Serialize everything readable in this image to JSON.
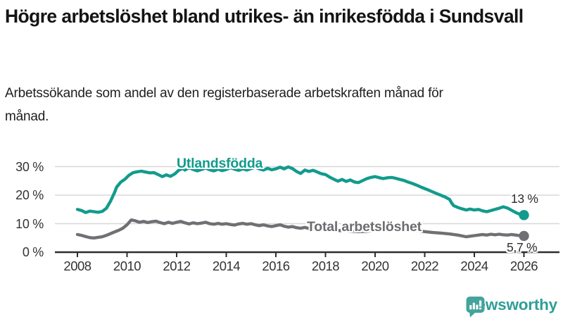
{
  "header": {
    "title": "Högre arbetslöshet bland utrikes- än inrikesfödda i Sundsvall",
    "subtitle": "Arbetssökande som andel av den registerbaserade arbetskraften månad för månad."
  },
  "chart_data": {
    "type": "line",
    "x_axis": {
      "tick_labels": [
        "2008",
        "2010",
        "2012",
        "2014",
        "2016",
        "2018",
        "2020",
        "2022",
        "2024",
        "2026"
      ],
      "ticks": [
        2008,
        2010,
        2012,
        2014,
        2016,
        2018,
        2020,
        2022,
        2024,
        2026
      ],
      "range": [
        2008,
        2026
      ]
    },
    "y_axis": {
      "tick_labels": [
        "0 %",
        "10 %",
        "20 %",
        "30 %"
      ],
      "ticks": [
        0,
        10,
        20,
        30
      ],
      "unit": "%",
      "range": [
        0,
        32
      ]
    },
    "grid": true,
    "colors": {
      "grid": "#d8d8d8",
      "axis": "#2e2e2e",
      "tick_text": "#333333"
    },
    "series": [
      {
        "name": "Utlandsfödda",
        "color": "#129b8d",
        "end_label": "13 %",
        "end_value": 13.0,
        "points": [
          [
            2008.0,
            15.0
          ],
          [
            2008.17,
            14.6
          ],
          [
            2008.33,
            13.9
          ],
          [
            2008.5,
            14.4
          ],
          [
            2008.67,
            14.2
          ],
          [
            2008.83,
            14.0
          ],
          [
            2009.0,
            14.3
          ],
          [
            2009.17,
            15.4
          ],
          [
            2009.33,
            17.8
          ],
          [
            2009.5,
            21.0
          ],
          [
            2009.58,
            22.8
          ],
          [
            2009.75,
            24.6
          ],
          [
            2009.92,
            25.6
          ],
          [
            2010.08,
            27.0
          ],
          [
            2010.25,
            27.9
          ],
          [
            2010.42,
            28.2
          ],
          [
            2010.58,
            28.4
          ],
          [
            2010.75,
            28.1
          ],
          [
            2010.92,
            27.8
          ],
          [
            2011.08,
            27.9
          ],
          [
            2011.25,
            27.2
          ],
          [
            2011.42,
            26.5
          ],
          [
            2011.58,
            27.1
          ],
          [
            2011.75,
            26.6
          ],
          [
            2011.92,
            27.4
          ],
          [
            2012.08,
            28.7
          ],
          [
            2012.25,
            29.4
          ],
          [
            2012.33,
            28.8
          ],
          [
            2012.5,
            29.6
          ],
          [
            2012.67,
            29.0
          ],
          [
            2012.83,
            28.5
          ],
          [
            2013.0,
            29.0
          ],
          [
            2013.17,
            29.5
          ],
          [
            2013.33,
            28.9
          ],
          [
            2013.5,
            28.5
          ],
          [
            2013.67,
            29.1
          ],
          [
            2013.83,
            28.6
          ],
          [
            2014.0,
            29.0
          ],
          [
            2014.17,
            29.6
          ],
          [
            2014.33,
            29.1
          ],
          [
            2014.5,
            28.7
          ],
          [
            2014.67,
            29.2
          ],
          [
            2014.83,
            28.8
          ],
          [
            2015.0,
            29.3
          ],
          [
            2015.17,
            29.8
          ],
          [
            2015.33,
            29.2
          ],
          [
            2015.5,
            28.8
          ],
          [
            2015.67,
            29.4
          ],
          [
            2015.83,
            28.9
          ],
          [
            2016.0,
            29.2
          ],
          [
            2016.17,
            29.8
          ],
          [
            2016.33,
            29.2
          ],
          [
            2016.5,
            29.9
          ],
          [
            2016.67,
            29.3
          ],
          [
            2016.83,
            28.3
          ],
          [
            2017.0,
            27.6
          ],
          [
            2017.17,
            28.8
          ],
          [
            2017.33,
            28.3
          ],
          [
            2017.5,
            28.7
          ],
          [
            2017.67,
            28.1
          ],
          [
            2017.83,
            27.5
          ],
          [
            2018.0,
            27.2
          ],
          [
            2018.17,
            26.3
          ],
          [
            2018.33,
            25.6
          ],
          [
            2018.5,
            24.9
          ],
          [
            2018.67,
            25.5
          ],
          [
            2018.83,
            24.8
          ],
          [
            2019.0,
            25.3
          ],
          [
            2019.17,
            24.6
          ],
          [
            2019.33,
            24.4
          ],
          [
            2019.5,
            25.1
          ],
          [
            2019.67,
            25.8
          ],
          [
            2019.83,
            26.2
          ],
          [
            2020.0,
            26.5
          ],
          [
            2020.17,
            26.1
          ],
          [
            2020.33,
            25.8
          ],
          [
            2020.5,
            26.1
          ],
          [
            2020.67,
            26.2
          ],
          [
            2020.83,
            25.9
          ],
          [
            2021.0,
            25.5
          ],
          [
            2021.17,
            25.1
          ],
          [
            2021.33,
            24.6
          ],
          [
            2021.5,
            24.1
          ],
          [
            2021.67,
            23.5
          ],
          [
            2021.83,
            22.9
          ],
          [
            2022.0,
            22.3
          ],
          [
            2022.17,
            21.7
          ],
          [
            2022.33,
            21.1
          ],
          [
            2022.5,
            20.5
          ],
          [
            2022.67,
            19.9
          ],
          [
            2022.83,
            19.3
          ],
          [
            2023.0,
            18.5
          ],
          [
            2023.08,
            17.3
          ],
          [
            2023.17,
            16.3
          ],
          [
            2023.33,
            15.7
          ],
          [
            2023.5,
            15.2
          ],
          [
            2023.67,
            14.8
          ],
          [
            2023.83,
            15.1
          ],
          [
            2024.0,
            14.8
          ],
          [
            2024.17,
            15.0
          ],
          [
            2024.33,
            14.5
          ],
          [
            2024.5,
            14.2
          ],
          [
            2024.67,
            14.6
          ],
          [
            2024.83,
            15.0
          ],
          [
            2025.0,
            15.4
          ],
          [
            2025.17,
            15.9
          ],
          [
            2025.33,
            15.5
          ],
          [
            2025.5,
            14.7
          ],
          [
            2025.67,
            13.9
          ],
          [
            2025.83,
            13.3
          ],
          [
            2026.0,
            13.0
          ]
        ]
      },
      {
        "name": "Total arbetslöshet",
        "color": "#707074",
        "label_color": "#6d6d71",
        "end_label": "5,7 %",
        "end_value": 5.7,
        "points": [
          [
            2008.0,
            6.2
          ],
          [
            2008.17,
            5.9
          ],
          [
            2008.33,
            5.5
          ],
          [
            2008.5,
            5.1
          ],
          [
            2008.67,
            5.0
          ],
          [
            2008.83,
            5.2
          ],
          [
            2009.0,
            5.4
          ],
          [
            2009.17,
            5.9
          ],
          [
            2009.33,
            6.5
          ],
          [
            2009.5,
            7.1
          ],
          [
            2009.67,
            7.7
          ],
          [
            2009.83,
            8.4
          ],
          [
            2010.0,
            9.6
          ],
          [
            2010.17,
            11.3
          ],
          [
            2010.33,
            11.0
          ],
          [
            2010.5,
            10.5
          ],
          [
            2010.67,
            10.8
          ],
          [
            2010.83,
            10.4
          ],
          [
            2011.0,
            10.7
          ],
          [
            2011.17,
            10.9
          ],
          [
            2011.33,
            10.4
          ],
          [
            2011.5,
            10.0
          ],
          [
            2011.67,
            10.5
          ],
          [
            2011.83,
            10.1
          ],
          [
            2012.0,
            10.5
          ],
          [
            2012.17,
            10.8
          ],
          [
            2012.33,
            10.3
          ],
          [
            2012.5,
            9.9
          ],
          [
            2012.67,
            10.3
          ],
          [
            2012.83,
            10.0
          ],
          [
            2013.0,
            10.2
          ],
          [
            2013.17,
            10.5
          ],
          [
            2013.33,
            10.0
          ],
          [
            2013.5,
            9.8
          ],
          [
            2013.67,
            10.1
          ],
          [
            2013.83,
            9.8
          ],
          [
            2014.0,
            10.0
          ],
          [
            2014.17,
            9.7
          ],
          [
            2014.33,
            9.5
          ],
          [
            2014.5,
            9.9
          ],
          [
            2014.67,
            10.1
          ],
          [
            2014.83,
            9.8
          ],
          [
            2015.0,
            10.0
          ],
          [
            2015.17,
            9.6
          ],
          [
            2015.33,
            9.3
          ],
          [
            2015.5,
            9.6
          ],
          [
            2015.67,
            9.2
          ],
          [
            2015.83,
            9.0
          ],
          [
            2016.0,
            9.3
          ],
          [
            2016.17,
            9.6
          ],
          [
            2016.33,
            9.1
          ],
          [
            2016.5,
            8.8
          ],
          [
            2016.67,
            9.0
          ],
          [
            2016.83,
            8.6
          ],
          [
            2017.0,
            8.4
          ],
          [
            2017.17,
            8.7
          ],
          [
            2017.33,
            8.3
          ],
          [
            2017.5,
            8.1
          ],
          [
            2017.67,
            8.4
          ],
          [
            2017.83,
            8.2
          ],
          [
            2018.0,
            8.0
          ],
          [
            2018.33,
            7.7
          ],
          [
            2018.67,
            7.5
          ],
          [
            2019.0,
            7.4
          ],
          [
            2019.33,
            7.2
          ],
          [
            2019.67,
            7.3
          ],
          [
            2020.0,
            7.8
          ],
          [
            2020.33,
            8.9
          ],
          [
            2020.67,
            8.8
          ],
          [
            2021.0,
            8.4
          ],
          [
            2021.33,
            8.0
          ],
          [
            2021.67,
            7.6
          ],
          [
            2022.0,
            7.2
          ],
          [
            2022.33,
            6.9
          ],
          [
            2022.67,
            6.7
          ],
          [
            2023.0,
            6.4
          ],
          [
            2023.17,
            6.2
          ],
          [
            2023.33,
            6.0
          ],
          [
            2023.5,
            5.7
          ],
          [
            2023.67,
            5.4
          ],
          [
            2023.83,
            5.6
          ],
          [
            2024.0,
            5.8
          ],
          [
            2024.17,
            6.0
          ],
          [
            2024.33,
            6.2
          ],
          [
            2024.5,
            6.0
          ],
          [
            2024.67,
            6.3
          ],
          [
            2024.83,
            6.1
          ],
          [
            2025.0,
            6.3
          ],
          [
            2025.17,
            6.1
          ],
          [
            2025.33,
            6.0
          ],
          [
            2025.5,
            6.2
          ],
          [
            2025.67,
            6.0
          ],
          [
            2025.83,
            5.8
          ],
          [
            2026.0,
            5.7
          ]
        ]
      }
    ]
  },
  "footer": {
    "brand": "Newsworthy",
    "brand_color": "#2f9e97",
    "icon": "bar-chart-speech-bubble-icon",
    "icon_color": "#44a49c"
  }
}
